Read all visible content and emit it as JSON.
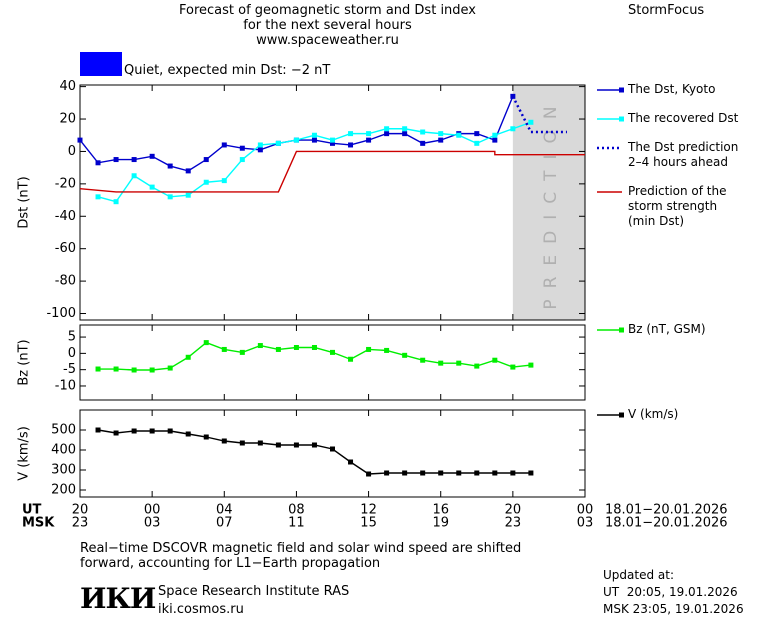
{
  "header": {
    "title": "Forecast of geomagnetic storm and Dst index\nfor the next several hours\nwww.spaceweather.ru",
    "brand": "StormFocus",
    "status": "Quiet, expected min Dst: −2 nT",
    "status_color": "#0000ff"
  },
  "chart_data": [
    {
      "type": "line",
      "y_label": "Dst (nT)",
      "xlim": [
        0,
        28
      ],
      "ylim": [
        -104,
        41
      ],
      "yticks": [
        40,
        20,
        0,
        -20,
        -40,
        -60,
        -80,
        -100
      ],
      "shade": {
        "xlim": [
          24,
          28
        ],
        "label": "PREDICTION",
        "color": "#d9d9d9"
      },
      "series": [
        {
          "name": "The Dst, Kyoto",
          "color": "#0000cc",
          "marker": "square",
          "dash": "solid",
          "x": [
            0,
            1,
            2,
            3,
            4,
            5,
            6,
            7,
            8,
            9,
            10,
            11,
            12,
            13,
            14,
            15,
            16,
            17,
            18,
            19,
            20,
            21,
            22,
            23,
            24
          ],
          "values": [
            7,
            -7,
            -5,
            -5,
            -3,
            -9,
            -12,
            -5,
            4,
            2,
            1,
            5,
            7,
            7,
            5,
            4,
            7,
            11,
            11,
            5,
            7,
            11,
            11,
            7,
            34
          ]
        },
        {
          "name": "The recovered Dst",
          "color": "#00ffff",
          "marker": "square",
          "dash": "solid",
          "x": [
            1,
            2,
            3,
            4,
            5,
            6,
            7,
            8,
            9,
            10,
            11,
            12,
            13,
            14,
            15,
            16,
            17,
            18,
            19,
            20,
            21,
            22,
            23,
            24,
            25
          ],
          "values": [
            -28,
            -31,
            -15,
            -22,
            -28,
            -27,
            -19,
            -18,
            -5,
            4,
            5,
            7,
            10,
            7,
            11,
            11,
            14,
            14,
            12,
            11,
            10,
            5,
            10,
            14,
            18
          ]
        },
        {
          "name": "The Dst prediction\n2–4 hours ahead",
          "color": "#0000cc",
          "marker": "none",
          "dash": "dotted",
          "x": [
            24,
            25,
            27
          ],
          "values": [
            34,
            12,
            12
          ]
        },
        {
          "name": "Prediction of the\nstorm strength\n(min Dst)",
          "color": "#cc0000",
          "marker": "none",
          "dash": "solid",
          "x": [
            0,
            2,
            11,
            12,
            23,
            23,
            28
          ],
          "values": [
            -23,
            -25,
            -25,
            0,
            0,
            -2,
            -2
          ]
        }
      ]
    },
    {
      "type": "line",
      "y_label": "Bz (nT)",
      "xlim": [
        0,
        28
      ],
      "ylim": [
        -14.3,
        8.7
      ],
      "yticks": [
        5,
        0,
        -5,
        -10
      ],
      "series": [
        {
          "name": "Bz (nT, GSM)",
          "color": "#00ee00",
          "marker": "square",
          "dash": "solid",
          "x": [
            1,
            2,
            3,
            4,
            5,
            6,
            7,
            8,
            9,
            10,
            11,
            12,
            13,
            14,
            15,
            16,
            17,
            18,
            19,
            20,
            21,
            22,
            23,
            24,
            25
          ],
          "values": [
            -4.8,
            -4.8,
            -5.1,
            -5.1,
            -4.5,
            -1.2,
            3.3,
            1.2,
            0.3,
            2.4,
            1.2,
            1.8,
            1.8,
            0.3,
            -1.8,
            1.2,
            0.9,
            -0.6,
            -2.1,
            -3,
            -3,
            -3.9,
            -2.1,
            -4.2,
            -3.6
          ]
        }
      ]
    },
    {
      "type": "line",
      "y_label": "V (km/s)",
      "xlim": [
        0,
        28
      ],
      "ylim": [
        165,
        600
      ],
      "yticks": [
        500,
        400,
        300,
        200
      ],
      "x_label_ut": "UT",
      "x_label_msk": "MSK",
      "xticks": [
        {
          "value": 0,
          "label": "20"
        },
        {
          "value": 4,
          "label": "00"
        },
        {
          "value": 8,
          "label": "04"
        },
        {
          "value": 12,
          "label": "08"
        },
        {
          "value": 16,
          "label": "12"
        },
        {
          "value": 20,
          "label": "16"
        },
        {
          "value": 24,
          "label": "20"
        },
        {
          "value": 28,
          "label": "00"
        }
      ],
      "msk_labels": [
        "23",
        "03",
        "07",
        "11",
        "15",
        "19",
        "23",
        "03"
      ],
      "date_ut": "18.01−20.01.2026",
      "date_msk": "18.01−20.01.2026",
      "series": [
        {
          "name": "V (km/s)",
          "color": "#000000",
          "marker": "square",
          "dash": "solid",
          "x": [
            1,
            2,
            3,
            4,
            5,
            6,
            7,
            8,
            9,
            10,
            11,
            12,
            13,
            14,
            15,
            16,
            17,
            18,
            19,
            20,
            21,
            22,
            23,
            24,
            25
          ],
          "values": [
            500,
            485,
            495,
            495,
            495,
            480,
            465,
            445,
            435,
            435,
            425,
            425,
            425,
            405,
            340,
            280,
            285,
            285,
            285,
            285,
            285,
            285,
            285,
            285,
            285
          ]
        }
      ]
    }
  ],
  "footer": {
    "note": "Real−time DSCOVR magnetic field and solar wind speed are shifted\nforward, accounting for L1−Earth propagation",
    "logo": "ИКИ",
    "institute": "Space Research Institute RAS",
    "site": "iki.cosmos.ru",
    "updated": "Updated at:",
    "updated_ut": "UT  20:05, 19.01.2026",
    "updated_msk": "MSK 23:05, 19.01.2026"
  }
}
